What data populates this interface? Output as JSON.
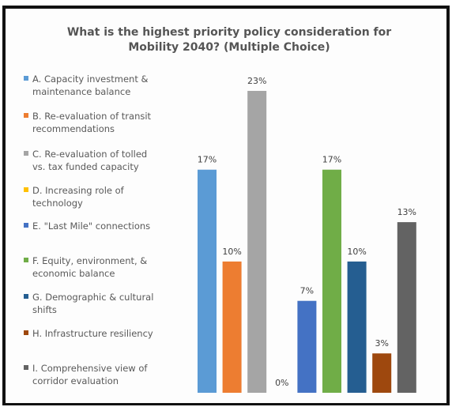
{
  "chart_data": {
    "type": "bar",
    "title": "What is the highest priority policy consideration for Mobility 2040? (Multiple Choice)",
    "xlabel": "",
    "ylabel": "",
    "ylim": [
      0,
      25
    ],
    "grid": false,
    "legend_position": "left",
    "categories": [
      "A. Capacity investment & maintenance balance",
      "B. Re-evaluation of transit recommendations",
      "C. Re-evaluation of tolled vs. tax funded capacity",
      "D. Increasing role of technology",
      "E. \"Last Mile\" connections",
      "F. Equity, environment, & economic balance",
      "G. Demographic & cultural shifts",
      "H. Infrastructure resiliency",
      "I. Comprehensive view of corridor evaluation"
    ],
    "values": [
      17,
      10,
      23,
      0,
      7,
      17,
      10,
      3,
      13
    ],
    "value_labels": [
      "17%",
      "10%",
      "23%",
      "0%",
      "7%",
      "17%",
      "10%",
      "3%",
      "13%"
    ],
    "colors": [
      "#5b9bd5",
      "#ed7d31",
      "#a5a5a5",
      "#ffc000",
      "#4472c4",
      "#70ad47",
      "#255e91",
      "#9e480e",
      "#636363"
    ],
    "legend": [
      {
        "line1": "A. Capacity investment &",
        "line2": "maintenance balance"
      },
      {
        "line1": "B. Re-evaluation of transit",
        "line2": "recommendations"
      },
      {
        "line1": "C. Re-evaluation of tolled",
        "line2": "vs. tax funded capacity"
      },
      {
        "line1": "D. Increasing role of",
        "line2": "technology"
      },
      {
        "line1": "E. \"Last Mile\" connections",
        "line2": ""
      },
      {
        "line1": "F. Equity, environment, &",
        "line2": "economic balance"
      },
      {
        "line1": "G. Demographic & cultural",
        "line2": "shifts"
      },
      {
        "line1": "H. Infrastructure resiliency",
        "line2": ""
      },
      {
        "line1": "I. Comprehensive view of",
        "line2": "corridor evaluation"
      }
    ]
  }
}
